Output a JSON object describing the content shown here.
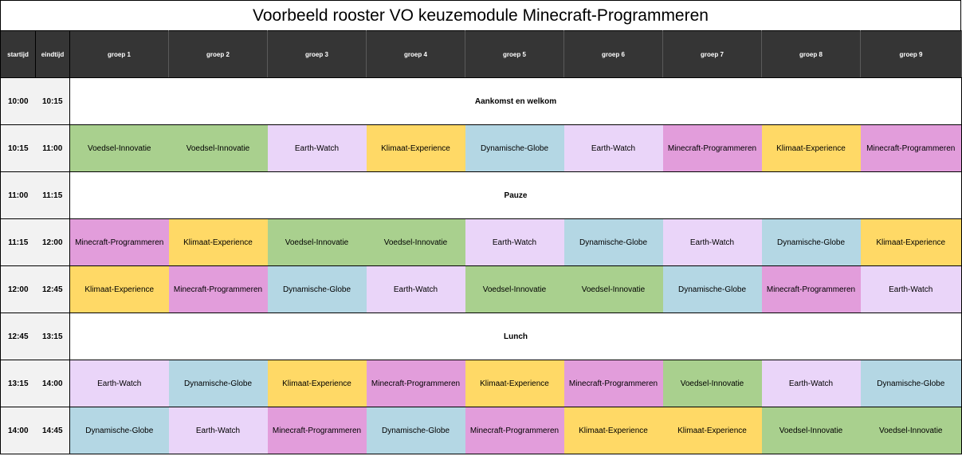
{
  "title": "Voorbeeld rooster VO keuzemodule  Minecraft-Programmeren",
  "colors": {
    "Voedsel-Innovatie": "#a9d08e",
    "Earth-Watch": "#ead5f9",
    "Klimaat-Experience": "#ffd966",
    "Dynamische-Globe": "#b4d7e4",
    "Minecraft-Programmeren": "#e29ddb"
  },
  "headers": {
    "start": "startijd",
    "end": "eindtijd",
    "groups": [
      "groep 1",
      "groep 2",
      "groep 3",
      "groep 4",
      "groep 5",
      "groep 6",
      "groep 7",
      "groep 8",
      "groep 9"
    ]
  },
  "rows": [
    {
      "start": "10:00",
      "end": "10:15",
      "full": "Aankomst en welkom"
    },
    {
      "start": "10:15",
      "end": "11:00",
      "cells": [
        "Voedsel-Innovatie",
        "Voedsel-Innovatie",
        "Earth-Watch",
        "Klimaat-Experience",
        "Dynamische-Globe",
        "Earth-Watch",
        "Minecraft-Programmeren",
        "Klimaat-Experience",
        "Minecraft-Programmeren"
      ]
    },
    {
      "start": "11:00",
      "end": "11:15",
      "full": "Pauze"
    },
    {
      "start": "11:15",
      "end": "12:00",
      "cells": [
        "Minecraft-Programmeren",
        "Klimaat-Experience",
        "Voedsel-Innovatie",
        "Voedsel-Innovatie",
        "Earth-Watch",
        "Dynamische-Globe",
        "Earth-Watch",
        "Dynamische-Globe",
        "Klimaat-Experience"
      ]
    },
    {
      "start": "12:00",
      "end": "12:45",
      "cells": [
        "Klimaat-Experience",
        "Minecraft-Programmeren",
        "Dynamische-Globe",
        "Earth-Watch",
        "Voedsel-Innovatie",
        "Voedsel-Innovatie",
        "Dynamische-Globe",
        "Minecraft-Programmeren",
        "Earth-Watch"
      ]
    },
    {
      "start": "12:45",
      "end": "13:15",
      "full": "Lunch"
    },
    {
      "start": "13:15",
      "end": "14:00",
      "cells": [
        "Earth-Watch",
        "Dynamische-Globe",
        "Klimaat-Experience",
        "Minecraft-Programmeren",
        "Klimaat-Experience",
        "Minecraft-Programmeren",
        "Voedsel-Innovatie",
        "Earth-Watch",
        "Dynamische-Globe"
      ]
    },
    {
      "start": "14:00",
      "end": "14:45",
      "cells": [
        "Dynamische-Globe",
        "Earth-Watch",
        "Minecraft-Programmeren",
        "Dynamische-Globe",
        "Minecraft-Programmeren",
        "Klimaat-Experience",
        "Klimaat-Experience",
        "Voedsel-Innovatie",
        "Voedsel-Innovatie"
      ]
    }
  ]
}
